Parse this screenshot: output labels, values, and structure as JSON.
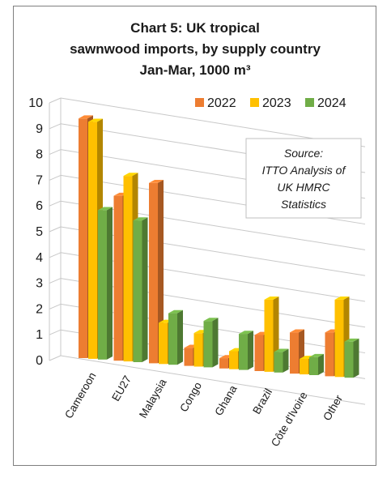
{
  "chart_data": {
    "type": "bar",
    "title_lines": [
      "Chart 5: UK tropical",
      "sawnwood imports, by supply country",
      "Jan-Mar, 1000 m³"
    ],
    "categories": [
      "Cameroon",
      "EU27",
      "Malaysia",
      "Congo",
      "Ghana",
      "Brazil",
      "Côte d'Ivoire",
      "Other"
    ],
    "series": [
      {
        "name": "2022",
        "color": "#ED7D31",
        "values": [
          9.3,
          6.4,
          7.0,
          0.7,
          0.4,
          1.4,
          1.6,
          1.7
        ]
      },
      {
        "name": "2023",
        "color": "#FFC000",
        "values": [
          9.2,
          7.2,
          1.6,
          1.3,
          0.7,
          2.8,
          0.6,
          3.0
        ]
      },
      {
        "name": "2024",
        "color": "#70AD47",
        "values": [
          5.8,
          5.5,
          2.0,
          1.8,
          1.4,
          0.8,
          0.7,
          1.4
        ]
      }
    ],
    "ylim": [
      0,
      10
    ],
    "yticks": [
      "0",
      "1",
      "2",
      "3",
      "4",
      "5",
      "6",
      "7",
      "8",
      "9",
      "10"
    ],
    "grid": true,
    "legend_position": "top-right",
    "source_note_lines": [
      "Source:",
      "ITTO Analysis of",
      "UK HMRC",
      "Statistics"
    ]
  }
}
